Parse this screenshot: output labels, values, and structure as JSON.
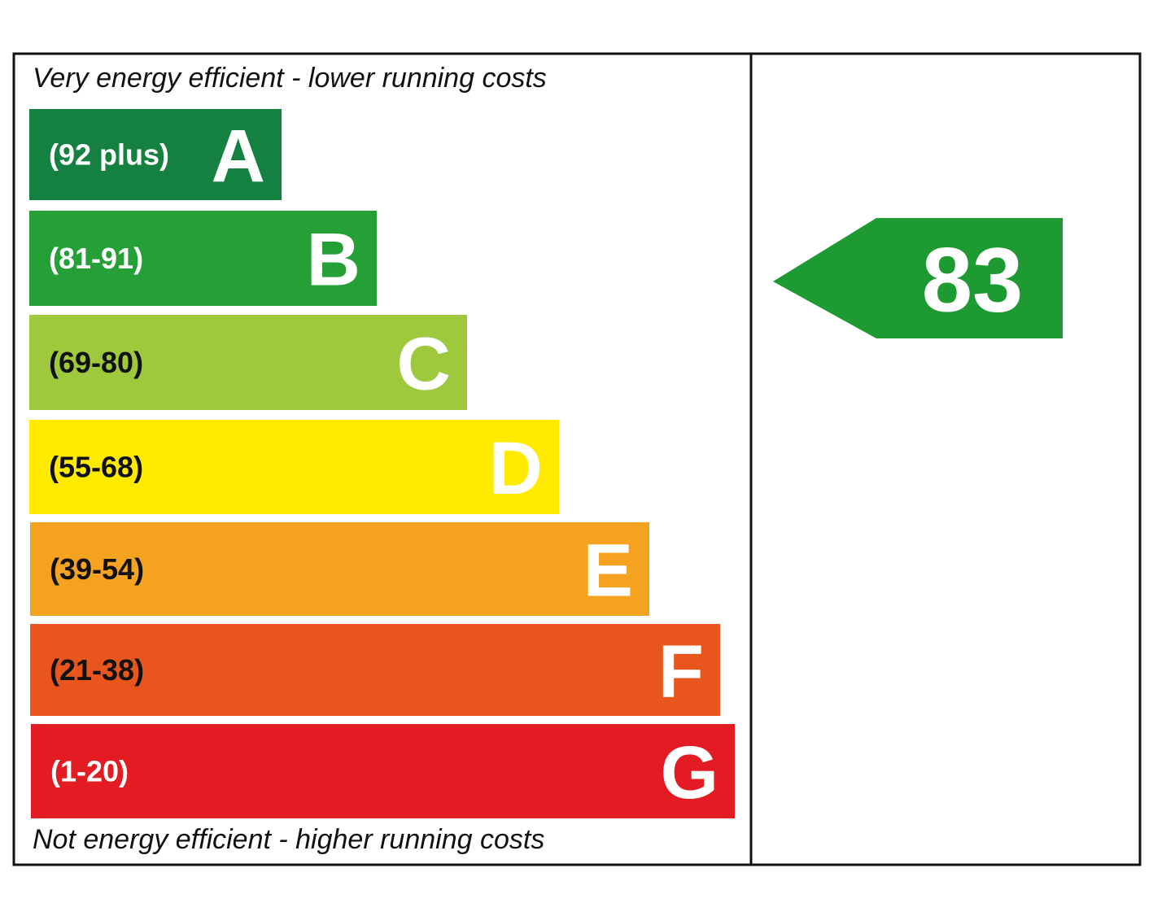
{
  "top_label": "Very energy efficient - lower running costs",
  "bottom_label": "Not energy efficient - higher running costs",
  "bands": [
    {
      "range": "(92 plus)",
      "letter": "A",
      "color": "#158140",
      "text_color": "#ffffff"
    },
    {
      "range": "(81-91)",
      "letter": "B",
      "color": "#24a037",
      "text_color": "#ffffff"
    },
    {
      "range": "(69-80)",
      "letter": "C",
      "color": "#9ec93c",
      "text_color": "#111111"
    },
    {
      "range": "(55-68)",
      "letter": "D",
      "color": "#ffea00",
      "text_color": "#111111"
    },
    {
      "range": "(39-54)",
      "letter": "E",
      "color": "#f4a21f",
      "text_color": "#111111"
    },
    {
      "range": "(21-38)",
      "letter": "F",
      "color": "#e8561e",
      "text_color": "#111111"
    },
    {
      "range": "(1-20)",
      "letter": "G",
      "color": "#e31b23",
      "text_color": "#ffffff"
    }
  ],
  "rating": {
    "value": 83,
    "color": "#1e9a32"
  }
}
